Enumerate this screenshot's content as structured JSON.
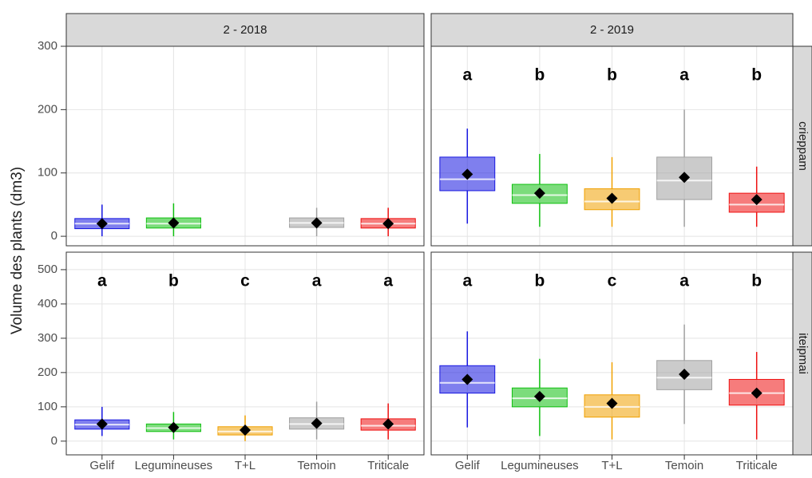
{
  "chart_data": {
    "type": "box",
    "y_label": "Volume des plants (dm3)",
    "categories": [
      "Gelif",
      "Legumineuses",
      "T+L",
      "Temoin",
      "Triticale"
    ],
    "colors": [
      "#1515e0",
      "#10c010",
      "#f0a000",
      "#a0a0a0",
      "#ee1010"
    ],
    "columns": [
      "2 - 2018",
      "2 - 2019"
    ],
    "rows": [
      {
        "name": "crieppam",
        "ylim": [
          -15,
          300
        ],
        "yticks": [
          0,
          100,
          200,
          300
        ]
      },
      {
        "name": "iteipmai",
        "ylim": [
          -40,
          551
        ],
        "yticks": [
          0,
          100,
          200,
          300,
          400,
          500
        ]
      }
    ],
    "grid": true,
    "panels": [
      {
        "boxes": [
          {
            "low": 0,
            "q1": 12,
            "median": 20,
            "q3": 28,
            "high": 50,
            "mean": 20
          },
          {
            "low": 0,
            "q1": 13,
            "median": 20,
            "q3": 29,
            "high": 52,
            "mean": 21
          },
          null,
          {
            "low": 0,
            "q1": 14,
            "median": 21,
            "q3": 29,
            "high": 45,
            "mean": 21
          },
          {
            "low": 0,
            "q1": 13,
            "median": 20,
            "q3": 28,
            "high": 45,
            "mean": 20
          }
        ]
      },
      {
        "boxes": [
          {
            "low": 20,
            "q1": 72,
            "median": 90,
            "q3": 125,
            "high": 170,
            "mean": 98
          },
          {
            "low": 15,
            "q1": 52,
            "median": 65,
            "q3": 82,
            "high": 130,
            "mean": 68
          },
          {
            "low": 15,
            "q1": 42,
            "median": 55,
            "q3": 75,
            "high": 125,
            "mean": 60
          },
          {
            "low": 15,
            "q1": 58,
            "median": 88,
            "q3": 125,
            "high": 200,
            "mean": 93
          },
          {
            "low": 15,
            "q1": 38,
            "median": 50,
            "q3": 68,
            "high": 110,
            "mean": 58
          }
        ],
        "letters": [
          "a",
          "b",
          "b",
          "a",
          "b"
        ]
      },
      {
        "boxes": [
          {
            "low": 15,
            "q1": 35,
            "median": 48,
            "q3": 62,
            "high": 100,
            "mean": 50
          },
          {
            "low": 5,
            "q1": 28,
            "median": 38,
            "q3": 50,
            "high": 85,
            "mean": 40
          },
          {
            "low": 0,
            "q1": 18,
            "median": 28,
            "q3": 42,
            "high": 75,
            "mean": 32
          },
          {
            "low": 5,
            "q1": 35,
            "median": 50,
            "q3": 68,
            "high": 115,
            "mean": 52
          },
          {
            "low": 5,
            "q1": 32,
            "median": 45,
            "q3": 65,
            "high": 110,
            "mean": 50
          }
        ],
        "letters": [
          "a",
          "b",
          "c",
          "a",
          "a"
        ]
      },
      {
        "boxes": [
          {
            "low": 40,
            "q1": 140,
            "median": 170,
            "q3": 220,
            "high": 320,
            "mean": 180
          },
          {
            "low": 15,
            "q1": 100,
            "median": 125,
            "q3": 155,
            "high": 240,
            "mean": 130
          },
          {
            "low": 5,
            "q1": 70,
            "median": 100,
            "q3": 135,
            "high": 230,
            "mean": 110
          },
          {
            "low": 50,
            "q1": 150,
            "median": 185,
            "q3": 235,
            "high": 340,
            "mean": 195
          },
          {
            "low": 5,
            "q1": 105,
            "median": 140,
            "q3": 180,
            "high": 260,
            "mean": 140
          }
        ],
        "letters": [
          "a",
          "b",
          "c",
          "a",
          "b"
        ]
      }
    ]
  }
}
